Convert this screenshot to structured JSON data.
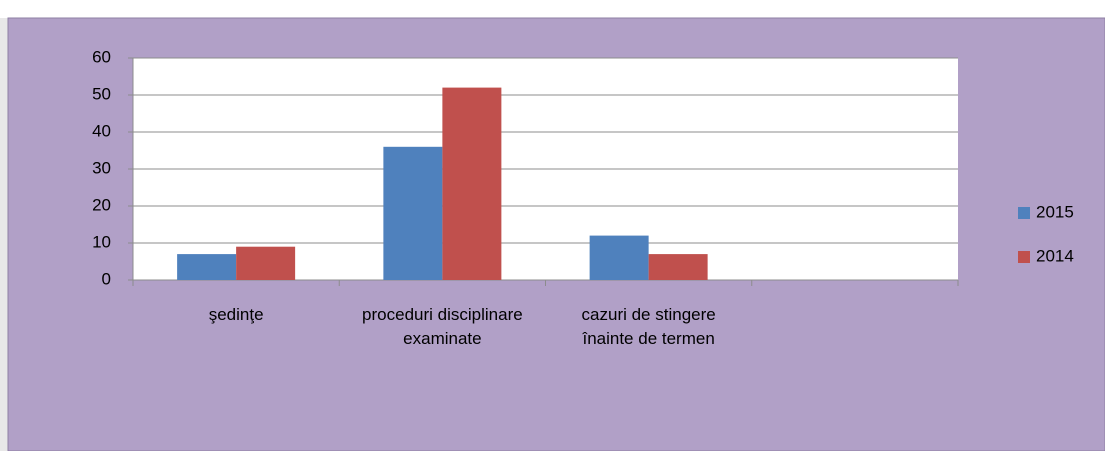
{
  "chart_data": {
    "type": "bar",
    "categories": [
      "şedinţe",
      "proceduri disciplinare examinate",
      "cazuri de stingere înainte de termen",
      null
    ],
    "series": [
      {
        "name": "2015",
        "color": "#4f81bd",
        "values": [
          7,
          36,
          12,
          null
        ]
      },
      {
        "name": "2014",
        "color": "#c0504d",
        "values": [
          9,
          52,
          7,
          null
        ]
      }
    ],
    "ylim": [
      0,
      60
    ],
    "yticks": [
      0,
      10,
      20,
      30,
      40,
      50,
      60
    ],
    "grid": true,
    "legend": "right"
  }
}
